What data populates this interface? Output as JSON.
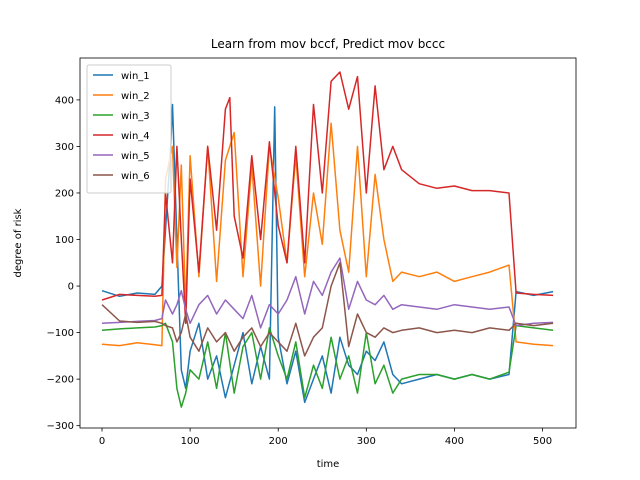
{
  "chart_data": {
    "type": "line",
    "title": "Learn from mov bccf, Predict mov bccc",
    "xlabel": "time",
    "ylabel": "degree of risk",
    "xlim": [
      -25,
      538
    ],
    "ylim": [
      -305,
      490
    ],
    "xticks": [
      0,
      100,
      200,
      300,
      400,
      500
    ],
    "yticks": [
      -300,
      -200,
      -100,
      0,
      100,
      200,
      300,
      400
    ],
    "grid": false,
    "legend_position": "top-left",
    "series": [
      {
        "name": "win_1",
        "color": "#1f77b4",
        "x": [
          0,
          20,
          40,
          60,
          68,
          72,
          78,
          80,
          85,
          90,
          95,
          100,
          110,
          120,
          130,
          140,
          150,
          160,
          170,
          180,
          190,
          196,
          200,
          210,
          220,
          230,
          240,
          250,
          260,
          270,
          280,
          290,
          300,
          310,
          320,
          330,
          340,
          360,
          380,
          400,
          420,
          440,
          462,
          470,
          490,
          512
        ],
        "y": [
          -10,
          -22,
          -15,
          -18,
          0,
          120,
          300,
          390,
          100,
          -180,
          -220,
          -140,
          -80,
          -200,
          -150,
          -240,
          -170,
          -100,
          -210,
          -130,
          -200,
          385,
          -110,
          -210,
          -140,
          -250,
          -200,
          -150,
          -230,
          -110,
          -170,
          -190,
          -140,
          -160,
          -120,
          -190,
          -210,
          -200,
          -190,
          -200,
          -190,
          -200,
          -190,
          -12,
          -20,
          -12
        ]
      },
      {
        "name": "win_2",
        "color": "#ff7f0e",
        "x": [
          0,
          20,
          40,
          60,
          68,
          72,
          80,
          85,
          90,
          95,
          100,
          110,
          120,
          130,
          140,
          150,
          160,
          170,
          180,
          190,
          200,
          210,
          220,
          230,
          240,
          250,
          260,
          270,
          280,
          290,
          300,
          310,
          320,
          330,
          340,
          360,
          380,
          400,
          420,
          440,
          462,
          470,
          490,
          512
        ],
        "y": [
          -125,
          -128,
          -122,
          -126,
          -128,
          230,
          300,
          40,
          260,
          -50,
          280,
          20,
          300,
          10,
          270,
          330,
          20,
          260,
          0,
          300,
          190,
          50,
          280,
          20,
          200,
          90,
          350,
          120,
          30,
          300,
          20,
          240,
          100,
          10,
          30,
          20,
          30,
          10,
          20,
          30,
          45,
          -120,
          -125,
          -128
        ]
      },
      {
        "name": "win_3",
        "color": "#2ca02c",
        "x": [
          0,
          20,
          40,
          60,
          68,
          72,
          80,
          85,
          90,
          95,
          100,
          110,
          120,
          130,
          140,
          150,
          160,
          170,
          180,
          190,
          200,
          210,
          220,
          230,
          240,
          250,
          260,
          270,
          280,
          290,
          300,
          310,
          320,
          330,
          340,
          360,
          380,
          400,
          420,
          440,
          462,
          470,
          490,
          512
        ],
        "y": [
          -95,
          -92,
          -90,
          -88,
          -85,
          -80,
          -120,
          -220,
          -260,
          -230,
          -180,
          -200,
          -120,
          -220,
          -100,
          -230,
          -130,
          -100,
          -200,
          -90,
          -150,
          -200,
          -120,
          -240,
          -170,
          -220,
          -110,
          -200,
          -150,
          -230,
          -100,
          -210,
          -170,
          -230,
          -200,
          -190,
          -190,
          -200,
          -190,
          -200,
          -185,
          -85,
          -90,
          -95
        ]
      },
      {
        "name": "win_4",
        "color": "#d62728",
        "x": [
          0,
          20,
          40,
          60,
          68,
          72,
          80,
          85,
          90,
          95,
          100,
          110,
          120,
          130,
          140,
          145,
          150,
          160,
          170,
          180,
          190,
          200,
          210,
          220,
          230,
          240,
          250,
          260,
          270,
          280,
          290,
          300,
          310,
          320,
          330,
          340,
          360,
          380,
          400,
          420,
          440,
          462,
          470,
          490,
          512
        ],
        "y": [
          -30,
          -18,
          -20,
          -22,
          -20,
          200,
          50,
          300,
          100,
          -80,
          230,
          30,
          300,
          120,
          380,
          405,
          150,
          60,
          280,
          100,
          310,
          130,
          50,
          300,
          50,
          390,
          200,
          440,
          460,
          380,
          450,
          200,
          430,
          250,
          300,
          250,
          220,
          210,
          215,
          205,
          205,
          200,
          -15,
          -18,
          -20
        ]
      },
      {
        "name": "win_5",
        "color": "#9467bd",
        "x": [
          0,
          20,
          40,
          60,
          68,
          72,
          80,
          85,
          90,
          95,
          100,
          110,
          120,
          130,
          140,
          150,
          160,
          170,
          180,
          190,
          200,
          210,
          220,
          230,
          240,
          250,
          260,
          270,
          280,
          290,
          300,
          310,
          320,
          330,
          340,
          360,
          380,
          400,
          420,
          440,
          462,
          470,
          490,
          512
        ],
        "y": [
          -80,
          -78,
          -76,
          -74,
          -70,
          -30,
          -60,
          -40,
          -10,
          -50,
          -80,
          -40,
          -20,
          -60,
          -30,
          -50,
          -70,
          -20,
          -90,
          -40,
          -60,
          -30,
          20,
          -60,
          10,
          -20,
          30,
          60,
          -50,
          10,
          -30,
          -40,
          -20,
          -50,
          -40,
          -45,
          -50,
          -40,
          -45,
          -50,
          -45,
          -85,
          -80,
          -78
        ]
      },
      {
        "name": "win_6",
        "color": "#8c564b",
        "x": [
          0,
          20,
          40,
          60,
          68,
          72,
          80,
          85,
          90,
          95,
          100,
          110,
          120,
          130,
          140,
          150,
          160,
          170,
          180,
          190,
          200,
          210,
          220,
          230,
          240,
          250,
          260,
          270,
          280,
          290,
          300,
          310,
          320,
          330,
          340,
          360,
          380,
          400,
          420,
          440,
          462,
          470,
          490,
          512
        ],
        "y": [
          -40,
          -75,
          -78,
          -76,
          -80,
          -85,
          -90,
          -120,
          -100,
          -60,
          -110,
          -140,
          -90,
          -120,
          -100,
          -140,
          -110,
          -90,
          -130,
          -100,
          -120,
          -140,
          -80,
          -150,
          -110,
          -90,
          0,
          50,
          -130,
          -60,
          -100,
          -110,
          -90,
          -100,
          -95,
          -90,
          -100,
          -95,
          -100,
          -90,
          -95,
          -80,
          -85,
          -80
        ]
      }
    ]
  }
}
